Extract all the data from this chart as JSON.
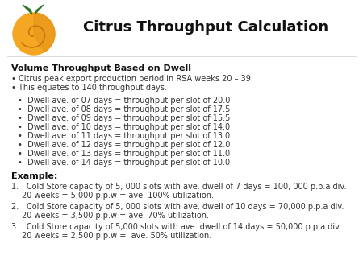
{
  "title": "Citrus Throughput Calculation",
  "background_color": "#ffffff",
  "section1_header": "Volume Throughput Based on Dwell",
  "bullets1": [
    "Citrus peak export production period in RSA weeks 20 – 39.",
    "This equates to 140 throughput days."
  ],
  "bullets2": [
    "Dwell ave. of 07 days = throughput per slot of 20.0",
    "Dwell ave. of 08 days = throughput per slot of 17.5",
    "Dwell ave. of 09 days = throughput per slot of 15.5",
    "Dwell ave. of 10 days = throughput per slot of 14.0",
    "Dwell ave. of 11 days = throughput per slot of 13.0",
    "Dwell ave. of 12 days = throughput per slot of 12.0",
    "Dwell ave. of 13 days = throughput per slot of 11.0",
    "Dwell ave. of 14 days = throughput per slot of 10.0"
  ],
  "example_header": "Example:",
  "examples": [
    [
      "Cold Store capacity of 5, 000 slots with ave. dwell of 7 days = 100, 000 p.p.a div.",
      "20 weeks = 5,000 p.p.w = ave. 100% utilization."
    ],
    [
      "Cold Store capacity of 5, 000 slots with ave. dwell of 10 days = 70,000 p.p.a div.",
      "20 weeks = 3,500 p.p.w = ave. 70% utilization."
    ],
    [
      "Cold Store capacity of 5,000 slots with ave. dwell of 14 days = 50,000 p.p.a div.",
      "20 weeks = 2,500 p.p.w =  ave. 50% utilization."
    ]
  ],
  "icon_fruit_color": "#f5a623",
  "icon_fruit_shadow": "#e8951a",
  "icon_swirl_color": "#c07a10",
  "icon_leaf_color": "#2d7a2d",
  "title_fontsize": 13,
  "header_fontsize": 8,
  "body_fontsize": 7,
  "text_color": "#333333",
  "header_color": "#111111"
}
